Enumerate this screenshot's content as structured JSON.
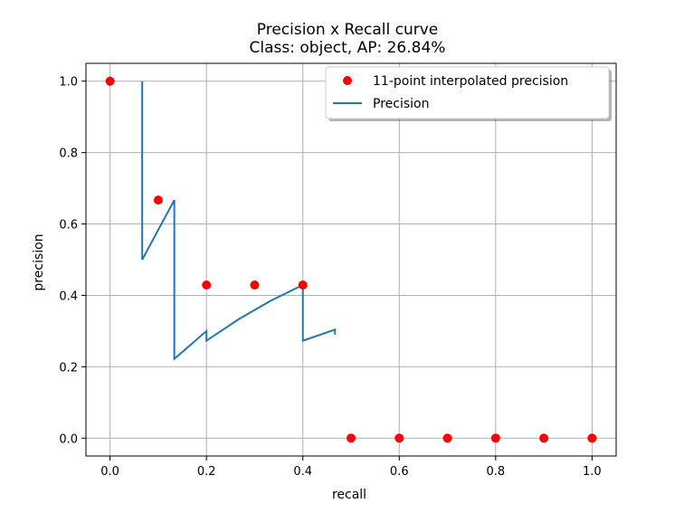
{
  "chart_data": {
    "type": "line",
    "title": "Precision x Recall curve",
    "subtitle": "Class: object, AP: 26.84%",
    "xlabel": "recall",
    "ylabel": "precision",
    "xlim": [
      -0.05,
      1.05
    ],
    "ylim": [
      -0.05,
      1.05
    ],
    "xticks": [
      "0.0",
      "0.2",
      "0.4",
      "0.6",
      "0.8",
      "1.0"
    ],
    "yticks": [
      "0.0",
      "0.2",
      "0.4",
      "0.6",
      "0.8",
      "1.0"
    ],
    "grid": true,
    "legend_position": "top-right",
    "series": [
      {
        "name": "11-point interpolated precision",
        "kind": "scatter",
        "color": "#ff0000",
        "x": [
          0.0,
          0.1,
          0.2,
          0.3,
          0.4,
          0.5,
          0.6,
          0.7,
          0.8,
          0.9,
          1.0
        ],
        "y": [
          1.0,
          0.667,
          0.429,
          0.429,
          0.429,
          0.0,
          0.0,
          0.0,
          0.0,
          0.0,
          0.0
        ]
      },
      {
        "name": "Precision",
        "kind": "line",
        "color": "#1f77b4",
        "x": [
          0.0667,
          0.0667,
          0.1333,
          0.1333,
          0.2,
          0.2,
          0.2667,
          0.3333,
          0.4,
          0.4,
          0.4667,
          0.4667
        ],
        "y": [
          1.0,
          0.5,
          0.667,
          0.222,
          0.3,
          0.273,
          0.333,
          0.385,
          0.429,
          0.273,
          0.304,
          0.29
        ]
      }
    ]
  }
}
